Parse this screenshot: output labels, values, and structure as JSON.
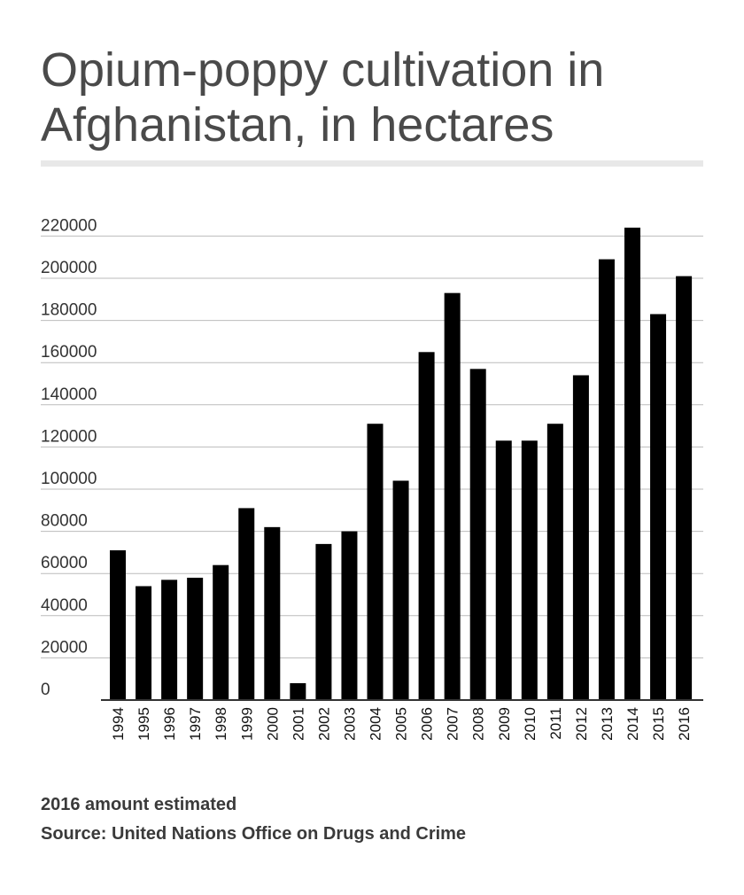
{
  "title": "Opium-poppy cultivation in Afghanistan, in hectares",
  "footnote": "2016 amount estimated",
  "source": "Source: United Nations Office on Drugs and Crime",
  "chart_data": {
    "type": "bar",
    "title": "Opium-poppy cultivation in Afghanistan, in hectares",
    "xlabel": "",
    "ylabel": "",
    "categories": [
      "1994",
      "1995",
      "1996",
      "1997",
      "1998",
      "1999",
      "2000",
      "2001",
      "2002",
      "2003",
      "2004",
      "2005",
      "2006",
      "2007",
      "2008",
      "2009",
      "2010",
      "2011",
      "2012",
      "2013",
      "2014",
      "2015",
      "2016"
    ],
    "values": [
      71000,
      54000,
      57000,
      58000,
      64000,
      91000,
      82000,
      8000,
      74000,
      80000,
      131000,
      104000,
      165000,
      193000,
      157000,
      123000,
      123000,
      131000,
      154000,
      209000,
      224000,
      183000,
      201000
    ],
    "yticks": [
      "0",
      "20000",
      "40000",
      "60000",
      "80000",
      "100000",
      "120000",
      "140000",
      "160000",
      "180000",
      "200000",
      "220000"
    ],
    "ytick_values": [
      0,
      20000,
      40000,
      60000,
      80000,
      100000,
      120000,
      140000,
      160000,
      180000,
      200000,
      220000
    ],
    "ylim": [
      0,
      230000
    ],
    "grid": true,
    "legend": "none",
    "bar_color": "#000000",
    "grid_color": "#bbbbbb",
    "axis_color": "#333333"
  }
}
